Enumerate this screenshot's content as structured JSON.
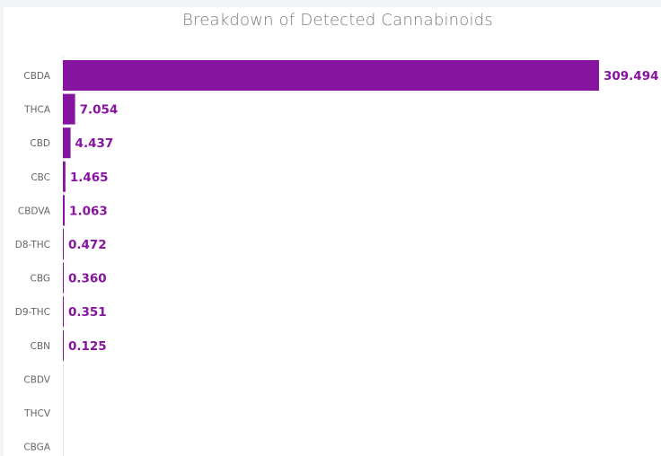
{
  "chart_data": {
    "type": "bar",
    "orientation": "horizontal",
    "title": "Breakdown of Detected Cannabinoids",
    "xlabel": "",
    "ylabel": "",
    "categories": [
      "CBDA",
      "THCA",
      "CBD",
      "CBC",
      "CBDVA",
      "D8-THC",
      "CBG",
      "D9-THC",
      "CBN",
      "CBDV",
      "THCV",
      "CBGA"
    ],
    "values": [
      309.494,
      7.054,
      4.437,
      1.465,
      1.063,
      0.472,
      0.36,
      0.351,
      0.125,
      null,
      null,
      null
    ],
    "value_labels": [
      "309.494",
      "7.054",
      "4.437",
      "1.465",
      "1.063",
      "0.472",
      "0.360",
      "0.351",
      "0.125",
      "",
      "",
      ""
    ],
    "xlim": [
      0,
      309.494
    ],
    "grid": false,
    "legend": "none",
    "bar_color": "#86149e",
    "label_color": "#86149e"
  }
}
